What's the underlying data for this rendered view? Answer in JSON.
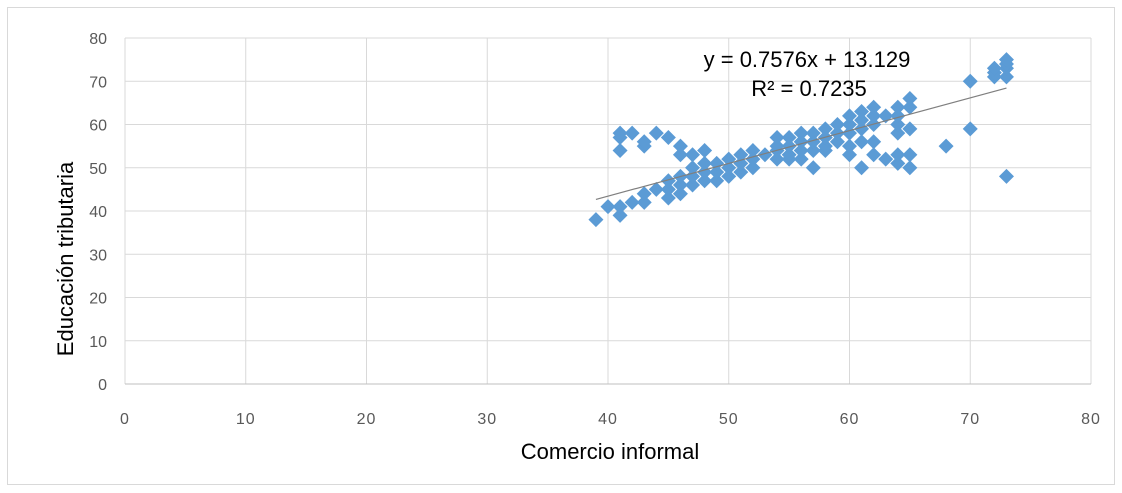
{
  "chart_data": {
    "type": "scatter",
    "xlabel": "Comercio informal",
    "ylabel": "Educación tributaria",
    "xlim": [
      0,
      80
    ],
    "ylim": [
      0,
      80
    ],
    "x_ticks": [
      "0",
      "10",
      "20",
      "30",
      "40",
      "50",
      "60",
      "70",
      "80"
    ],
    "y_ticks": [
      "0",
      "10",
      "20",
      "30",
      "40",
      "50",
      "60",
      "70",
      "80"
    ],
    "grid": true,
    "legend": "none",
    "marker_color": "#5B9BD5",
    "trendline": {
      "slope": 0.7576,
      "intercept": 13.129,
      "x_range": [
        39,
        73
      ],
      "color": "#7f7f7f",
      "equation": "y = 0.7576x + 13.129",
      "r_squared": "R² = 0.7235"
    },
    "points": [
      [
        39,
        38
      ],
      [
        40,
        41
      ],
      [
        41,
        39
      ],
      [
        41,
        41
      ],
      [
        41,
        54
      ],
      [
        41,
        57
      ],
      [
        41,
        58
      ],
      [
        42,
        42
      ],
      [
        42,
        58
      ],
      [
        43,
        42
      ],
      [
        43,
        44
      ],
      [
        43,
        55
      ],
      [
        43,
        56
      ],
      [
        44,
        45
      ],
      [
        44,
        58
      ],
      [
        45,
        43
      ],
      [
        45,
        45
      ],
      [
        45,
        47
      ],
      [
        45,
        57
      ],
      [
        46,
        44
      ],
      [
        46,
        46
      ],
      [
        46,
        48
      ],
      [
        46,
        53
      ],
      [
        46,
        55
      ],
      [
        47,
        46
      ],
      [
        47,
        48
      ],
      [
        47,
        50
      ],
      [
        47,
        53
      ],
      [
        48,
        47
      ],
      [
        48,
        49
      ],
      [
        48,
        51
      ],
      [
        48,
        54
      ],
      [
        49,
        47
      ],
      [
        49,
        49
      ],
      [
        49,
        51
      ],
      [
        50,
        48
      ],
      [
        50,
        50
      ],
      [
        50,
        52
      ],
      [
        51,
        49
      ],
      [
        51,
        51
      ],
      [
        51,
        53
      ],
      [
        52,
        50
      ],
      [
        52,
        52
      ],
      [
        52,
        54
      ],
      [
        53,
        53
      ],
      [
        54,
        52
      ],
      [
        54,
        54
      ],
      [
        54,
        55
      ],
      [
        54,
        57
      ],
      [
        55,
        52
      ],
      [
        55,
        53
      ],
      [
        55,
        55
      ],
      [
        55,
        57
      ],
      [
        56,
        52
      ],
      [
        56,
        54
      ],
      [
        56,
        56
      ],
      [
        56,
        58
      ],
      [
        57,
        50
      ],
      [
        57,
        54
      ],
      [
        57,
        56
      ],
      [
        57,
        58
      ],
      [
        58,
        54
      ],
      [
        58,
        55
      ],
      [
        58,
        57
      ],
      [
        58,
        59
      ],
      [
        59,
        56
      ],
      [
        59,
        58
      ],
      [
        59,
        60
      ],
      [
        60,
        53
      ],
      [
        60,
        55
      ],
      [
        60,
        58
      ],
      [
        60,
        60
      ],
      [
        60,
        62
      ],
      [
        61,
        50
      ],
      [
        61,
        56
      ],
      [
        61,
        59
      ],
      [
        61,
        61
      ],
      [
        61,
        63
      ],
      [
        62,
        53
      ],
      [
        62,
        56
      ],
      [
        62,
        60
      ],
      [
        62,
        62
      ],
      [
        62,
        64
      ],
      [
        63,
        52
      ],
      [
        63,
        62
      ],
      [
        64,
        51
      ],
      [
        64,
        53
      ],
      [
        64,
        58
      ],
      [
        64,
        60
      ],
      [
        64,
        62
      ],
      [
        64,
        64
      ],
      [
        65,
        50
      ],
      [
        65,
        53
      ],
      [
        65,
        59
      ],
      [
        65,
        64
      ],
      [
        65,
        66
      ],
      [
        68,
        55
      ],
      [
        70,
        59
      ],
      [
        70,
        70
      ],
      [
        72,
        71
      ],
      [
        72,
        72
      ],
      [
        72,
        73
      ],
      [
        73,
        48
      ],
      [
        73,
        71
      ],
      [
        73,
        73
      ],
      [
        73,
        74
      ],
      [
        73,
        75
      ]
    ]
  }
}
